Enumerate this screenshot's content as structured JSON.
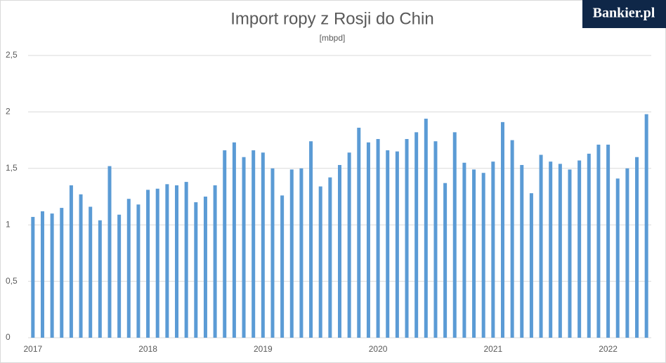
{
  "brand": "Bankier.pl",
  "chart_data": {
    "type": "bar",
    "title": "Import ropy z Rosji do Chin",
    "subtitle": "[mbpd]",
    "categories": [
      "2017",
      null,
      null,
      null,
      null,
      null,
      null,
      null,
      null,
      null,
      null,
      null,
      "2018",
      null,
      null,
      null,
      null,
      null,
      null,
      null,
      null,
      null,
      null,
      null,
      "2019",
      null,
      null,
      null,
      null,
      null,
      null,
      null,
      null,
      null,
      null,
      null,
      "2020",
      null,
      null,
      null,
      null,
      null,
      null,
      null,
      null,
      null,
      null,
      null,
      "2021",
      null,
      null,
      null,
      null,
      null,
      null,
      null,
      null,
      null,
      null,
      null,
      "2022",
      null,
      null,
      null,
      null
    ],
    "values": [
      1.07,
      1.12,
      1.1,
      1.15,
      1.35,
      1.27,
      1.16,
      1.04,
      1.52,
      1.09,
      1.23,
      1.18,
      1.31,
      1.32,
      1.36,
      1.35,
      1.38,
      1.2,
      1.25,
      1.35,
      1.66,
      1.73,
      1.6,
      1.66,
      1.64,
      1.5,
      1.26,
      1.49,
      1.5,
      1.74,
      1.34,
      1.42,
      1.53,
      1.64,
      1.86,
      1.73,
      1.76,
      1.66,
      1.65,
      1.76,
      1.82,
      1.94,
      1.74,
      1.37,
      1.82,
      1.55,
      1.49,
      1.46,
      1.56,
      1.91,
      1.75,
      1.53,
      1.28,
      1.62,
      1.56,
      1.54,
      1.49,
      1.57,
      1.63,
      1.71,
      1.71,
      1.41,
      1.5,
      1.6,
      1.98
    ],
    "color": "#5b9bd5",
    "ylim": [
      0,
      2.5
    ],
    "yticks": [
      0,
      {
        "value": 0.5,
        "label": "0,5"
      },
      1,
      {
        "value": 1.5,
        "label": "1,5"
      },
      2,
      {
        "value": 2.5,
        "label": "2,5"
      }
    ],
    "grid": true
  }
}
